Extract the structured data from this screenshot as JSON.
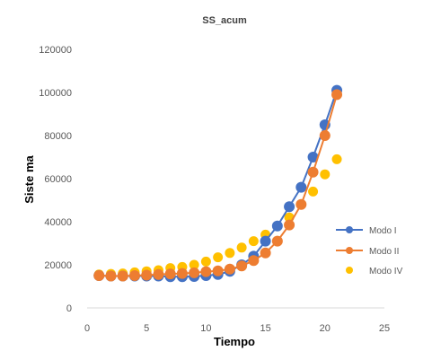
{
  "chart_data": {
    "type": "line",
    "title": "SS_acum",
    "xlabel": "Tiempo",
    "ylabel": "Siste ma",
    "xlim": [
      0,
      25
    ],
    "ylim": [
      0,
      120000
    ],
    "x_ticks": [
      "0",
      "5",
      "10",
      "15",
      "20",
      "25"
    ],
    "y_ticks": [
      "0",
      "20000",
      "40000",
      "60000",
      "80000",
      "100000",
      "120000"
    ],
    "grid": false,
    "legend_position": "right",
    "x": [
      1,
      2,
      3,
      4,
      5,
      6,
      7,
      8,
      9,
      10,
      11,
      12,
      13,
      14,
      15,
      16,
      17,
      18,
      19,
      20,
      21
    ],
    "series": [
      {
        "name": "Modo I",
        "style": "line-markers",
        "color": "#4472C4",
        "values": [
          15000,
          14800,
          14800,
          14800,
          14800,
          14800,
          14500,
          14500,
          14600,
          15000,
          15500,
          17000,
          20000,
          24000,
          31000,
          38000,
          47000,
          56000,
          70000,
          85000,
          101000
        ]
      },
      {
        "name": "Modo II",
        "style": "line-markers",
        "color": "#ED7D31",
        "values": [
          15000,
          14800,
          14800,
          15000,
          15200,
          15500,
          15800,
          16000,
          16300,
          16800,
          17200,
          18000,
          19500,
          22000,
          25500,
          31000,
          38500,
          48000,
          63000,
          80000,
          99000
        ]
      },
      {
        "name": "Modo IV",
        "style": "markers",
        "color": "#FFC000",
        "values": [
          15500,
          15800,
          16000,
          16500,
          17000,
          17500,
          18500,
          19000,
          20000,
          21500,
          23500,
          25500,
          28000,
          31000,
          34000,
          38000,
          42000,
          48000,
          54000,
          62000,
          69000
        ]
      }
    ]
  }
}
